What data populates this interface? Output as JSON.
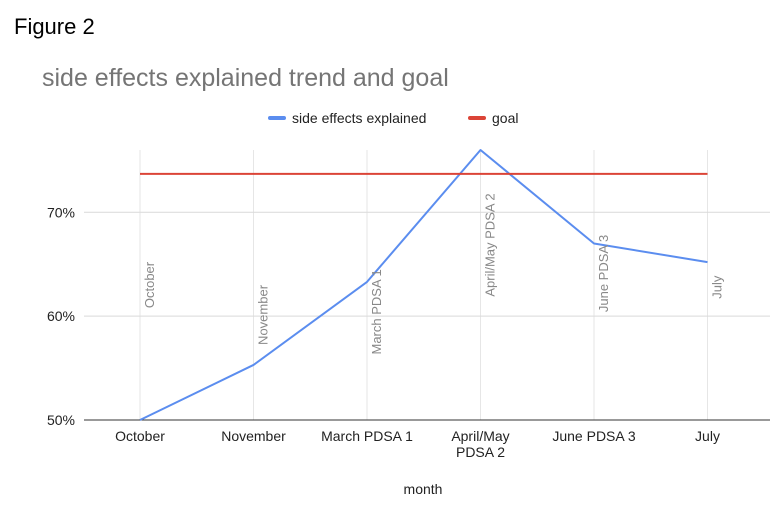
{
  "figure_label": "Figure 2",
  "chart_data": {
    "type": "line",
    "title": "side effects explained trend and goal",
    "xlabel": "month",
    "ylabel": "",
    "categories": [
      "October",
      "November",
      "March PDSA 1",
      "April/May PDSA 2",
      "June PDSA 3",
      "July"
    ],
    "category_lines": [
      [
        "October"
      ],
      [
        "November"
      ],
      [
        "March PDSA 1"
      ],
      [
        "April/May",
        "PDSA 2"
      ],
      [
        "June PDSA 3"
      ],
      [
        "July"
      ]
    ],
    "ylim": [
      0.5,
      0.76
    ],
    "yticks": [
      0.5,
      0.6,
      0.7
    ],
    "ytick_labels": [
      "50%",
      "60%",
      "70%"
    ],
    "grid": true,
    "legend": "top",
    "series": [
      {
        "name": "side effects explained",
        "color": "#5b8def",
        "values": [
          0.5,
          0.553,
          0.633,
          0.76,
          0.67,
          0.652
        ]
      },
      {
        "name": "goal",
        "color": "#db4437",
        "values": [
          0.737,
          0.737,
          0.737,
          0.737,
          0.737,
          0.737
        ]
      }
    ],
    "point_annotations": [
      "October",
      "November",
      "March PDSA 1",
      "April/May PDSA 2",
      "June PDSA 3",
      "July"
    ]
  }
}
